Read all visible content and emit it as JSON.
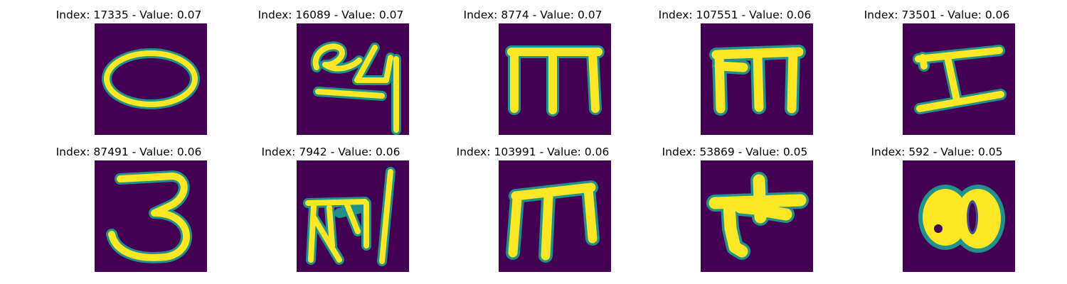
{
  "panels": [
    {
      "title": "Index: 17335 - Value: 0.07",
      "glyph": "oval-glyph"
    },
    {
      "title": "Index: 16089 - Value: 0.07",
      "glyph": "loop-24-glyph"
    },
    {
      "title": "Index: 8774 - Value: 0.07",
      "glyph": "m-glyph"
    },
    {
      "title": "Index: 107551 - Value: 0.06",
      "glyph": "m-glyph"
    },
    {
      "title": "Index: 73501 - Value: 0.06",
      "glyph": "i-beam-glyph"
    },
    {
      "title": "Index: 87491 - Value: 0.06",
      "glyph": "three-glyph"
    },
    {
      "title": "Index: 7942 - Value: 0.06",
      "glyph": "scribble-glyph"
    },
    {
      "title": "Index: 103991 - Value: 0.06",
      "glyph": "m-glyph"
    },
    {
      "title": "Index: 53869 - Value: 0.05",
      "glyph": "blob-cross-glyph"
    },
    {
      "title": "Index: 592 - Value: 0.05",
      "glyph": "blob-glyph"
    }
  ],
  "colors": {
    "background": "#440154",
    "mid": "#21918c",
    "stroke": "#fde725"
  }
}
